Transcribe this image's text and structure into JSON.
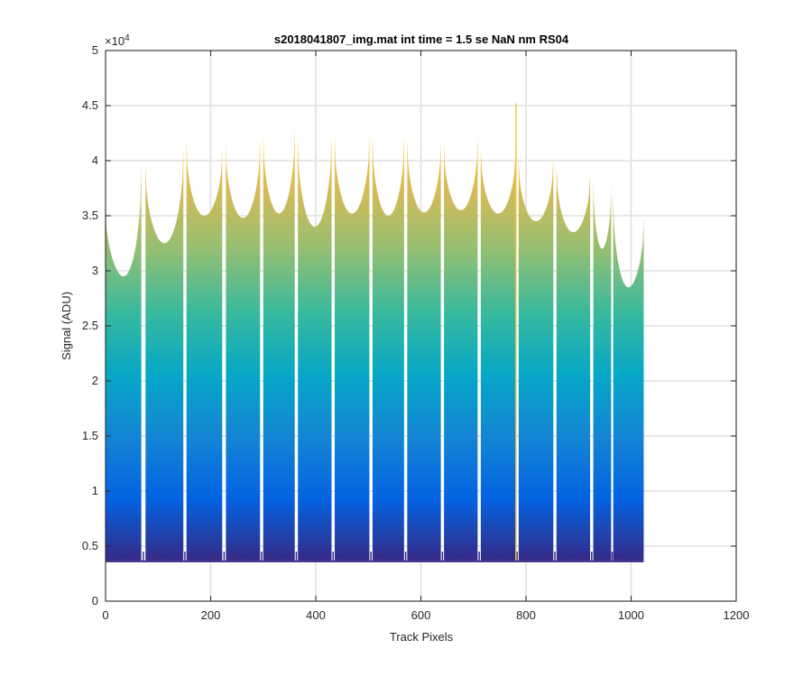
{
  "chart_data": {
    "type": "area",
    "title": "s2018041807_img.mat int time = 1.5 se  NaN nm RS04",
    "xlabel": "Track Pixels",
    "ylabel": "Signal (ADU)",
    "xlim": [
      0,
      1200
    ],
    "ylim": [
      0,
      50000
    ],
    "x_ticks": [
      0,
      200,
      400,
      600,
      800,
      1000,
      1200
    ],
    "x_tick_labels": [
      "0",
      "200",
      "400",
      "600",
      "800",
      "1000",
      "1200"
    ],
    "y_ticks": [
      0,
      5000,
      10000,
      15000,
      20000,
      25000,
      30000,
      35000,
      40000,
      45000,
      50000
    ],
    "y_tick_labels": [
      "0",
      "0.5",
      "1",
      "1.5",
      "2",
      "2.5",
      "3",
      "3.5",
      "4",
      "4.5",
      "5"
    ],
    "y_exponent_label": "×10",
    "y_exponent_power": "4",
    "grid": true,
    "colormap": "parula",
    "colormap_stops": [
      "#352a87",
      "#0363e1",
      "#1485d4",
      "#06a7c6",
      "#38b99e",
      "#92bf73",
      "#d9ba56",
      "#fcce2e"
    ],
    "baseline": 3700,
    "x_range": [
      0,
      1024
    ],
    "segments": [
      {
        "x_start": 0,
        "x_end": 68,
        "peak_left": 36000,
        "valley": 29500,
        "peak_right": 39500
      },
      {
        "x_start": 76,
        "x_end": 148,
        "peak_left": 39600,
        "valley": 32500,
        "peak_right": 41200
      },
      {
        "x_start": 154,
        "x_end": 222,
        "peak_left": 41800,
        "valley": 35000,
        "peak_right": 41000
      },
      {
        "x_start": 229,
        "x_end": 294,
        "peak_left": 41600,
        "valley": 34800,
        "peak_right": 42000
      },
      {
        "x_start": 300,
        "x_end": 360,
        "peak_left": 42500,
        "valley": 35200,
        "peak_right": 43000
      },
      {
        "x_start": 366,
        "x_end": 430,
        "peak_left": 42000,
        "valley": 34000,
        "peak_right": 42300
      },
      {
        "x_start": 436,
        "x_end": 502,
        "peak_left": 42200,
        "valley": 35200,
        "peak_right": 42400
      },
      {
        "x_start": 508,
        "x_end": 568,
        "peak_left": 42300,
        "valley": 35000,
        "peak_right": 42300
      },
      {
        "x_start": 574,
        "x_end": 638,
        "peak_left": 42000,
        "valley": 35300,
        "peak_right": 41800
      },
      {
        "x_start": 644,
        "x_end": 708,
        "peak_left": 41500,
        "valley": 35500,
        "peak_right": 42200
      },
      {
        "x_start": 714,
        "x_end": 780,
        "peak_left": 41200,
        "valley": 35200,
        "peak_right": 41000
      },
      {
        "x_start": 786,
        "x_end": 852,
        "peak_left": 40200,
        "valley": 34500,
        "peak_right": 40300
      },
      {
        "x_start": 858,
        "x_end": 922,
        "peak_left": 39700,
        "valley": 33500,
        "peak_right": 38800
      },
      {
        "x_start": 928,
        "x_end": 962,
        "peak_left": 38500,
        "valley": 32000,
        "peak_right": 37800
      },
      {
        "x_start": 966,
        "x_end": 1024,
        "peak_left": 37000,
        "valley": 28500,
        "peak_right": 34800
      }
    ],
    "spike": {
      "x": 781,
      "value": 45200
    }
  }
}
